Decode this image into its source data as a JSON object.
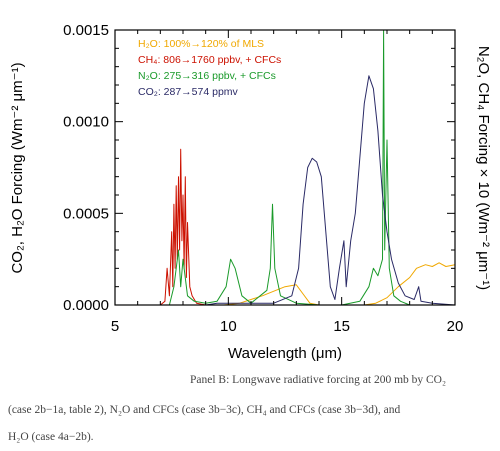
{
  "chart_data": {
    "type": "line",
    "xlabel": "Wavelength (μm)",
    "ylabel_left": "CO₂, H₂O Forcing (Wm⁻² μm⁻¹)",
    "ylabel_right": "N₂O, CH₄ Forcing × 10 (Wm⁻² μm⁻¹)",
    "xlim": [
      5,
      20
    ],
    "ylim": [
      0,
      0.0015
    ],
    "x_ticks": [
      "5",
      "10",
      "15",
      "20"
    ],
    "y_ticks": [
      "0.0000",
      "0.0005",
      "0.0010",
      "0.0015"
    ],
    "grid": false,
    "legend_position": "top-left",
    "series": [
      {
        "name": "H₂O: 100%→120% of MLS",
        "color": "#f0a800",
        "points": [
          [
            5,
            0
          ],
          [
            9.8,
            0
          ],
          [
            10.5,
            1e-05
          ],
          [
            11.5,
            5e-05
          ],
          [
            12.5,
            0.0001
          ],
          [
            13,
            0.00011
          ],
          [
            13.3,
            6e-05
          ],
          [
            13.6,
            1e-05
          ],
          [
            14,
            0
          ],
          [
            15,
            0
          ],
          [
            16,
            0
          ],
          [
            16.5,
            1e-05
          ],
          [
            17,
            4e-05
          ],
          [
            17.5,
            0.0001
          ],
          [
            18,
            0.00015
          ],
          [
            18.3,
            0.0002
          ],
          [
            18.7,
            0.00022
          ],
          [
            19,
            0.00021
          ],
          [
            19.3,
            0.00023
          ],
          [
            19.6,
            0.00021
          ],
          [
            20,
            0.00022
          ]
        ]
      },
      {
        "name": "CH₄: 806→1760 ppbv, + CFCs",
        "color": "#cc1100",
        "points": [
          [
            5,
            0
          ],
          [
            7,
            0
          ],
          [
            7.2,
            2e-05
          ],
          [
            7.3,
            0.0002
          ],
          [
            7.4,
            5e-05
          ],
          [
            7.5,
            0.0004
          ],
          [
            7.55,
            0.0001
          ],
          [
            7.6,
            0.00055
          ],
          [
            7.65,
            0.0002
          ],
          [
            7.7,
            0.00065
          ],
          [
            7.75,
            0.00025
          ],
          [
            7.8,
            0.0007
          ],
          [
            7.85,
            0.0003
          ],
          [
            7.9,
            0.00085
          ],
          [
            7.95,
            0.00035
          ],
          [
            8.0,
            0.0006
          ],
          [
            8.05,
            0.0002
          ],
          [
            8.1,
            0.0007
          ],
          [
            8.15,
            0.00015
          ],
          [
            8.2,
            0.00045
          ],
          [
            8.3,
            0.0001
          ],
          [
            8.4,
            5e-05
          ],
          [
            8.6,
            1e-05
          ],
          [
            9,
            0
          ],
          [
            20,
            0
          ]
        ]
      },
      {
        "name": "N₂O: 275→316 ppbv, + CFCs",
        "color": "#1a9a2a",
        "points": [
          [
            5,
            0
          ],
          [
            7.4,
            0
          ],
          [
            7.6,
            0.0001
          ],
          [
            7.8,
            0.0003
          ],
          [
            7.9,
            0.0001
          ],
          [
            8.0,
            0.00025
          ],
          [
            8.2,
            5e-05
          ],
          [
            8.5,
            2e-05
          ],
          [
            9.0,
            1e-05
          ],
          [
            9.5,
            2e-05
          ],
          [
            9.9,
            0.0001
          ],
          [
            10.1,
            0.00025
          ],
          [
            10.3,
            0.0002
          ],
          [
            10.6,
            5e-05
          ],
          [
            11,
            1e-05
          ],
          [
            11.7,
            8e-05
          ],
          [
            11.85,
            0.0002
          ],
          [
            11.95,
            0.00055
          ],
          [
            12.05,
            0.0002
          ],
          [
            12.3,
            5e-05
          ],
          [
            13,
            1e-05
          ],
          [
            14,
            0
          ],
          [
            15,
            0
          ],
          [
            15.8,
            2e-05
          ],
          [
            16.2,
            0.0001
          ],
          [
            16.4,
            0.0002
          ],
          [
            16.6,
            0.00016
          ],
          [
            16.8,
            0.00025
          ],
          [
            16.85,
            0.0015
          ],
          [
            16.9,
            0.0003
          ],
          [
            17.0,
            0.0009
          ],
          [
            17.1,
            0.0002
          ],
          [
            17.3,
            5e-05
          ],
          [
            17.6,
            2e-05
          ],
          [
            18,
            0
          ],
          [
            20,
            0
          ]
        ]
      },
      {
        "name": "CO₂: 287→574 ppmv",
        "color": "#2a2a66",
        "points": [
          [
            5,
            0
          ],
          [
            9,
            0
          ],
          [
            9.5,
            1e-05
          ],
          [
            12,
            1e-05
          ],
          [
            12.8,
            5e-05
          ],
          [
            13.1,
            0.0002
          ],
          [
            13.3,
            0.00055
          ],
          [
            13.5,
            0.00075
          ],
          [
            13.7,
            0.0008
          ],
          [
            13.9,
            0.00078
          ],
          [
            14.1,
            0.0007
          ],
          [
            14.3,
            0.0004
          ],
          [
            14.5,
            0.0001
          ],
          [
            14.7,
            3e-05
          ],
          [
            14.9,
            0.0002
          ],
          [
            15.1,
            0.00035
          ],
          [
            15.2,
            0.0001
          ],
          [
            15.4,
            0.00035
          ],
          [
            15.6,
            0.0005
          ],
          [
            15.8,
            0.0008
          ],
          [
            16.0,
            0.0011
          ],
          [
            16.2,
            0.00125
          ],
          [
            16.4,
            0.00118
          ],
          [
            16.6,
            0.00095
          ],
          [
            16.8,
            0.0006
          ],
          [
            17.0,
            0.0004
          ],
          [
            17.2,
            0.00025
          ],
          [
            17.5,
            0.00012
          ],
          [
            17.8,
            5e-05
          ],
          [
            18.2,
            3e-05
          ],
          [
            18.4,
            0.0001
          ],
          [
            18.5,
            2e-05
          ],
          [
            19,
            1e-05
          ],
          [
            20,
            0
          ]
        ]
      }
    ],
    "caption_lines": [
      "Panel B: Longwave radiative forcing at 200 mb by CO₂",
      "(case 2b−1a, table 2), N₂O and CFCs (case 3b−3c), CH₄ and CFCs (case 3b−3d), and",
      "H₂O (case 4a−2b)."
    ]
  }
}
